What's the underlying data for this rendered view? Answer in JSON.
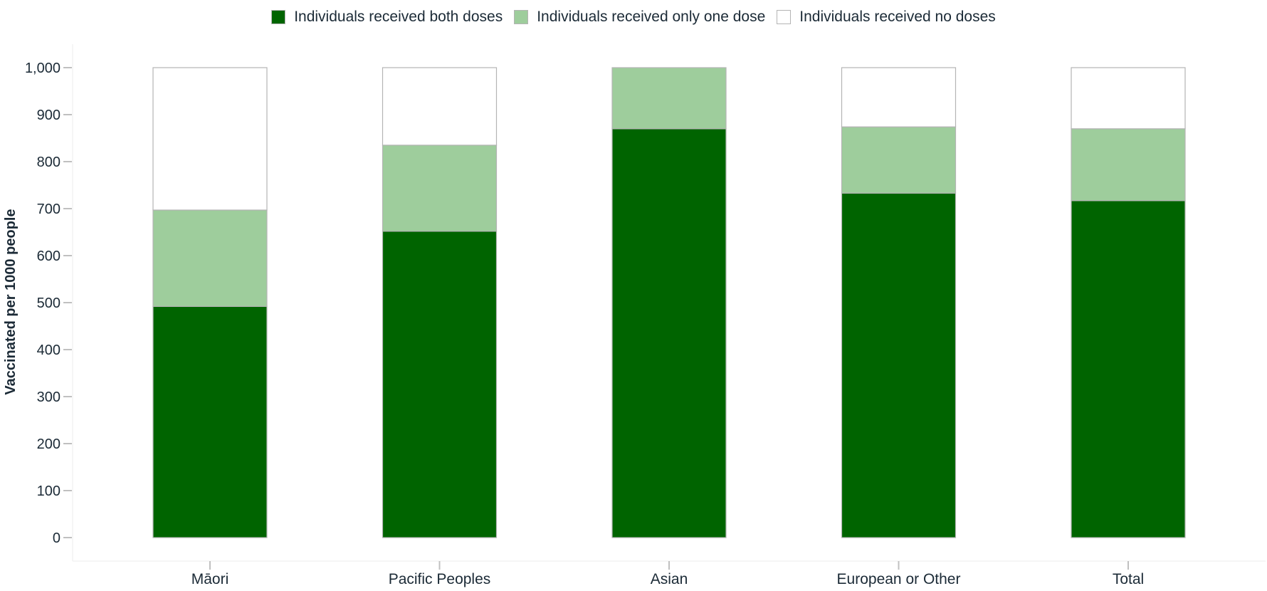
{
  "chart_data": {
    "type": "bar",
    "stacked": true,
    "title": "",
    "xlabel": "",
    "ylabel": "Vaccinated per 1000 people",
    "ylim": [
      0,
      1000
    ],
    "yticks": [
      0,
      100,
      200,
      300,
      400,
      500,
      600,
      700,
      800,
      900,
      1000
    ],
    "ytick_labels": [
      "0",
      "100",
      "200",
      "300",
      "400",
      "500",
      "600",
      "700",
      "800",
      "900",
      "1,000"
    ],
    "categories": [
      "Māori",
      "Pacific Peoples",
      "Asian",
      "European or Other",
      "Total"
    ],
    "legend_position": "top-center",
    "grid": false,
    "series": [
      {
        "name": "Individuals received both doses",
        "color": "#006400",
        "values": [
          492,
          652,
          870,
          733,
          717
        ]
      },
      {
        "name": "Individuals received only one dose",
        "color": "#9ecd9c",
        "values": [
          205,
          183,
          130,
          141,
          153
        ]
      },
      {
        "name": "Individuals received no doses",
        "color": "#ffffff",
        "values": [
          303,
          165,
          0,
          126,
          130
        ]
      }
    ]
  }
}
